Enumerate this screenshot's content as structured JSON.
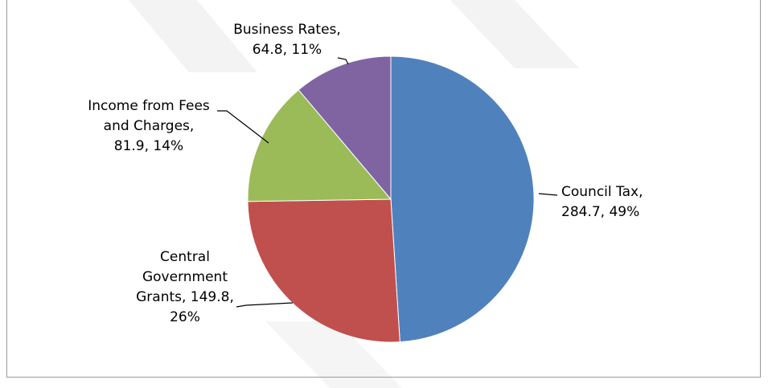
{
  "chart_data": {
    "type": "pie",
    "title": "",
    "legend": "none",
    "slices": [
      {
        "name": "Council Tax",
        "value": 284.7,
        "percent": 49,
        "color": "#4F81BD",
        "label_lines": [
          "Council Tax,",
          "284.7, 49%"
        ]
      },
      {
        "name": "Central Government Grants",
        "value": 149.8,
        "percent": 26,
        "color": "#C0504D",
        "label_lines": [
          "Central",
          "Government",
          "Grants, 149.8,",
          "26%"
        ]
      },
      {
        "name": "Income from Fees and Charges",
        "value": 81.9,
        "percent": 14,
        "color": "#9BBB59",
        "label_lines": [
          "Income from Fees",
          "and Charges,",
          "81.9, 14%"
        ]
      },
      {
        "name": "Business Rates",
        "value": 64.8,
        "percent": 11,
        "color": "#8064A2",
        "label_lines": [
          "Business Rates,",
          "64.8, 11%"
        ]
      }
    ]
  }
}
